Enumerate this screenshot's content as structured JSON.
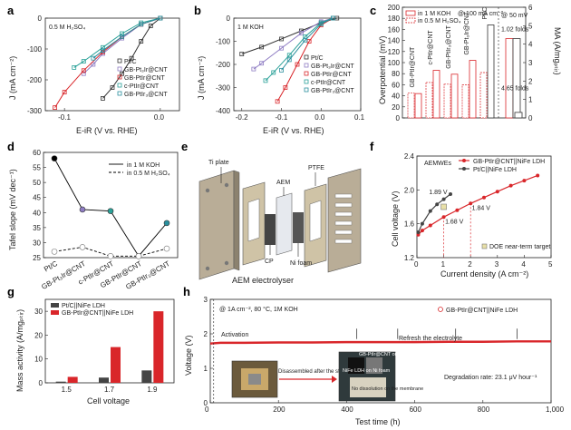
{
  "panel_letters": [
    "a",
    "b",
    "c",
    "d",
    "e",
    "f",
    "g",
    "h"
  ],
  "colors": {
    "ptc": "#333333",
    "gb_ptir": "#8e7cc3",
    "gb_ptir_cnt": "#d9262a",
    "c_ptir": "#2aa198",
    "gb_ptir3": "#2a8f9d"
  },
  "chart_data": [
    {
      "id": "a",
      "type": "line",
      "annotation": "0.5 M H₂SO₄",
      "xlabel": "E-iR (V vs. RHE)",
      "ylabel": "J (mA cm⁻²)",
      "xlim": [
        -0.12,
        0.02
      ],
      "ylim": [
        -300,
        0
      ],
      "xticks": [
        "-0.1",
        "0.0"
      ],
      "yticks": [
        "0",
        "-100",
        "-200",
        "-300"
      ],
      "legend": [
        "Pt/C",
        "GB-Pt₃Ir@CNT",
        "GB-PtIr@CNT",
        "c-PtIr@CNT",
        "GB-PtIr₃@CNT"
      ],
      "series": [
        {
          "name": "Pt/C",
          "color": "#333333",
          "x": [
            0.0,
            -0.01,
            -0.02,
            -0.03,
            -0.04,
            -0.05,
            -0.06
          ],
          "y": [
            0,
            -25,
            -75,
            -130,
            -180,
            -225,
            -260
          ]
        },
        {
          "name": "GB-Pt₃Ir@CNT",
          "color": "#8e7cc3",
          "x": [
            0.0,
            -0.02,
            -0.04,
            -0.06,
            -0.07,
            -0.08
          ],
          "y": [
            0,
            -20,
            -65,
            -115,
            -150,
            -180
          ]
        },
        {
          "name": "GB-PtIr@CNT",
          "color": "#d9262a",
          "x": [
            0.0,
            -0.02,
            -0.04,
            -0.06,
            -0.08,
            -0.1,
            -0.11
          ],
          "y": [
            0,
            -20,
            -60,
            -110,
            -170,
            -240,
            -290
          ]
        },
        {
          "name": "c-PtIr@CNT",
          "color": "#2aa198",
          "x": [
            0.0,
            -0.02,
            -0.04,
            -0.06,
            -0.08,
            -0.09
          ],
          "y": [
            0,
            -15,
            -50,
            -95,
            -140,
            -160
          ]
        },
        {
          "name": "GB-PtIr₃@CNT",
          "color": "#2a8f9d",
          "x": [
            0.0,
            -0.02,
            -0.04,
            -0.06,
            -0.07
          ],
          "y": [
            0,
            -20,
            -60,
            -105,
            -130
          ]
        }
      ]
    },
    {
      "id": "b",
      "type": "line",
      "annotation": "1 M KOH",
      "xlabel": "E-iR (V vs. RHE)",
      "ylabel": "J (mA cm⁻²)",
      "xlim": [
        -0.22,
        0.1
      ],
      "ylim": [
        -400,
        0
      ],
      "xticks": [
        "-0.2",
        "-0.1",
        "0.0",
        "0.1"
      ],
      "yticks": [
        "0",
        "-100",
        "-200",
        "-300",
        "-400"
      ],
      "legend": [
        "Pt/C",
        "GB-Pt₃Ir@CNT",
        "GB-PtIr@CNT",
        "c-PtIr@CNT",
        "GB-PtIr₃@CNT"
      ],
      "series": [
        {
          "name": "Pt/C",
          "color": "#333333",
          "x": [
            0.04,
            0.0,
            -0.05,
            -0.1,
            -0.15,
            -0.2
          ],
          "y": [
            0,
            -20,
            -55,
            -90,
            -125,
            -155
          ]
        },
        {
          "name": "GB-Pt₃Ir@CNT",
          "color": "#8e7cc3",
          "x": [
            0.03,
            0.0,
            -0.05,
            -0.1,
            -0.15,
            -0.17
          ],
          "y": [
            0,
            -15,
            -65,
            -130,
            -195,
            -220
          ]
        },
        {
          "name": "GB-PtIr@CNT",
          "color": "#d9262a",
          "x": [
            0.03,
            0.0,
            -0.03,
            -0.06,
            -0.09,
            -0.11
          ],
          "y": [
            0,
            -30,
            -100,
            -200,
            -300,
            -360
          ]
        },
        {
          "name": "c-PtIr@CNT",
          "color": "#2aa198",
          "x": [
            0.03,
            0.0,
            -0.04,
            -0.08,
            -0.12,
            -0.14
          ],
          "y": [
            0,
            -20,
            -80,
            -160,
            -235,
            -270
          ]
        },
        {
          "name": "GB-PtIr₃@CNT",
          "color": "#2a8f9d",
          "x": [
            0.03,
            0.0,
            -0.04,
            -0.08,
            -0.1
          ],
          "y": [
            0,
            -25,
            -95,
            -180,
            -225
          ]
        }
      ]
    },
    {
      "id": "c",
      "type": "bar",
      "legend": [
        "in 1 M KOH",
        "in 0.5 M H₂SO₄"
      ],
      "legend_title": "@ 100 mA cm⁻²",
      "right_title": "@ 50 mV",
      "ylabel": "Overpotential (mV)",
      "y2label": "MA (A/mgₚₜᵢᵣ)",
      "ylim": [
        0,
        200
      ],
      "yticks": [
        "0",
        "20",
        "40",
        "60",
        "80",
        "100",
        "120",
        "140",
        "160",
        "180",
        "200"
      ],
      "y2lim": [
        0,
        6
      ],
      "y2ticks": [
        "0",
        "1",
        "2",
        "3",
        "4",
        "5",
        "6"
      ],
      "categories": [
        "GB-PtIr@CNT",
        "c-PtIr@CNT",
        "GB-PtIr₃@CNT",
        "GB-Pt₃Ir@CNT",
        "Pt/C"
      ],
      "series": [
        {
          "name": "in 1 M KOH",
          "values": [
            44,
            86,
            79,
            104,
            168
          ]
        },
        {
          "name": "in 0.5 M H₂SO₄",
          "values": [
            45,
            64,
            61,
            60,
            82
          ]
        }
      ],
      "ma_values": [
        4.3,
        0.3
      ],
      "ma_labels": [
        "1.02 folds",
        "4.65 folds"
      ]
    },
    {
      "id": "d",
      "type": "line",
      "ylabel": "Tafel slope (mV dec⁻¹)",
      "ylim": [
        25,
        60
      ],
      "yticks": [
        "25",
        "30",
        "35",
        "40",
        "45",
        "50",
        "55",
        "60"
      ],
      "categories": [
        "Pt/C",
        "GB-Pt₃Ir@CNT",
        "c-PtIr@CNT",
        "GB-PtIr@CNT",
        "GB-PtIr₃@CNT"
      ],
      "legend": [
        "in 1 M KOH",
        "in 0.5 M H₂SO₄"
      ],
      "series": [
        {
          "name": "in 1 M KOH",
          "values": [
            58,
            41,
            40.5,
            25.5,
            36.5
          ]
        },
        {
          "name": "in 0.5 M H₂SO₄",
          "values": [
            27,
            28.5,
            25.5,
            25.5,
            28
          ]
        }
      ]
    },
    {
      "id": "f",
      "type": "line",
      "annotation": "AEMWEs",
      "xlabel": "Current density (A cm⁻²)",
      "ylabel": "Cell voltage (V)",
      "xlim": [
        0,
        5
      ],
      "ylim": [
        1.2,
        2.4
      ],
      "xticks": [
        "0",
        "1",
        "2",
        "3",
        "4",
        "5"
      ],
      "yticks": [
        "1.2",
        "1.6",
        "2.0",
        "2.4"
      ],
      "legend": [
        "GB-PtIr@CNT||NiFe LDH",
        "Pt/C||NiFe LDH",
        "DOE near-term target"
      ],
      "labels": [
        "1.89 V",
        "1.68 V",
        "1.84 V"
      ],
      "series": [
        {
          "name": "GB-PtIr@CNT||NiFe LDH",
          "x": [
            0.05,
            0.2,
            0.5,
            1.0,
            1.5,
            2.0,
            2.5,
            3.0,
            3.5,
            4.0,
            4.5
          ],
          "y": [
            1.47,
            1.52,
            1.58,
            1.68,
            1.76,
            1.84,
            1.91,
            1.98,
            2.05,
            2.11,
            2.17
          ]
        },
        {
          "name": "Pt/C||NiFe LDH",
          "x": [
            0.05,
            0.2,
            0.5,
            0.75,
            1.0,
            1.25
          ],
          "y": [
            1.5,
            1.6,
            1.75,
            1.83,
            1.89,
            1.95
          ]
        }
      ],
      "target": {
        "x": 1.0,
        "y": 1.8
      }
    },
    {
      "id": "g",
      "type": "bar",
      "ylabel": "Mass activity (A/mgₚₜᵢᵣ)",
      "xlabel": "Cell voltage",
      "ylim": [
        0,
        35
      ],
      "yticks": [
        "0",
        "10",
        "20",
        "30"
      ],
      "categories": [
        "1.5",
        "1.7",
        "1.9"
      ],
      "legend": [
        "Pt/C||NiFe LDH",
        "GB-PtIr@CNT||NiFe LDH"
      ],
      "series": [
        {
          "name": "Pt/C||NiFe LDH",
          "values": [
            0.5,
            2.2,
            5.2
          ]
        },
        {
          "name": "GB-PtIr@CNT||NiFe LDH",
          "values": [
            2.5,
            15,
            30
          ]
        }
      ]
    },
    {
      "id": "h",
      "type": "line",
      "annotation": "@ 1A cm⁻², 80 °C, 1M KOH",
      "xlabel": "Test time (h)",
      "ylabel": "Voltage (V)",
      "xlim": [
        0,
        1000
      ],
      "ylim": [
        0,
        3
      ],
      "xticks": [
        "0",
        "200",
        "400",
        "600",
        "800",
        "1,000"
      ],
      "yticks": [
        "0",
        "1",
        "2",
        "3"
      ],
      "legend": [
        "GB-PtIr@CNT||NiFe LDH"
      ],
      "notes": [
        "Activation",
        "Refresh the electrolyte",
        "Degradation rate: 23.1 μV hour⁻¹",
        "Disassembled after the stability test"
      ],
      "photo_labels": [
        "GB-PtIr@CNT on CP",
        "NiFe LDH on Ni foam",
        "No dissolution on the membrane"
      ],
      "series": [
        {
          "name": "GB-PtIr@CNT||NiFe LDH",
          "x": [
            0,
            30,
            100,
            200,
            300,
            400,
            500,
            600,
            700,
            800,
            900,
            1000
          ],
          "y": [
            1.72,
            1.74,
            1.74,
            1.75,
            1.75,
            1.76,
            1.76,
            1.76,
            1.77,
            1.77,
            1.78,
            1.78
          ]
        }
      ]
    }
  ],
  "panel_e": {
    "labels": [
      "Ti plate",
      "AEM",
      "PTFE",
      "CP",
      "Ni foam"
    ],
    "caption": "AEM electrolyser"
  }
}
